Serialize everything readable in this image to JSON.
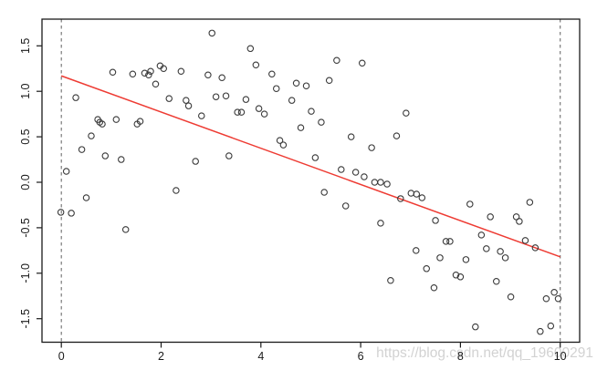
{
  "chart_data": {
    "type": "scatter",
    "title": "",
    "xlabel": "",
    "ylabel": "",
    "xlim": [
      -0.39,
      10.4
    ],
    "ylim": [
      -1.77,
      1.79
    ],
    "grid": false,
    "x_tick_labels": [
      "0",
      "2",
      "4",
      "6",
      "8",
      "10"
    ],
    "x_tick_values": [
      0,
      2,
      4,
      6,
      8,
      10
    ],
    "y_tick_labels": [
      "-1.5",
      "-1.0",
      "-0.5",
      "0.0",
      "0.5",
      "1.0",
      "1.5"
    ],
    "y_tick_values": [
      -1.5,
      -1.0,
      -0.5,
      0.0,
      0.5,
      1.0,
      1.5
    ],
    "vlines": {
      "x": [
        0,
        10
      ],
      "style": "dashed",
      "color": "#6e6e6e"
    },
    "regression_line": {
      "x1": 0,
      "y1": 1.17,
      "x2": 10,
      "y2": -0.82,
      "color": "#ee3b33"
    },
    "point_style": {
      "shape": "open-circle",
      "color": "#3a3a3a",
      "radius": 3.2
    },
    "points": [
      [
        1.03,
        1.21
      ],
      [
        1.43,
        1.19
      ],
      [
        1.67,
        1.2
      ],
      [
        1.75,
        1.18
      ],
      [
        1.79,
        1.22
      ],
      [
        1.98,
        1.28
      ],
      [
        2.05,
        1.25
      ],
      [
        1.89,
        1.08
      ],
      [
        2.4,
        1.22
      ],
      [
        0.29,
        0.93
      ],
      [
        2.16,
        0.92
      ],
      [
        0.73,
        0.69
      ],
      [
        0.77,
        0.66
      ],
      [
        0.82,
        0.64
      ],
      [
        1.1,
        0.69
      ],
      [
        1.52,
        0.64
      ],
      [
        1.58,
        0.67
      ],
      [
        0.6,
        0.51
      ],
      [
        0.41,
        0.36
      ],
      [
        0.88,
        0.29
      ],
      [
        1.2,
        0.25
      ],
      [
        3.02,
        1.64
      ],
      [
        3.79,
        1.47
      ],
      [
        3.9,
        1.29
      ],
      [
        2.94,
        1.18
      ],
      [
        3.22,
        1.15
      ],
      [
        4.22,
        1.19
      ],
      [
        4.31,
        1.03
      ],
      [
        4.71,
        1.09
      ],
      [
        4.91,
        1.06
      ],
      [
        5.37,
        1.12
      ],
      [
        3.1,
        0.94
      ],
      [
        3.3,
        0.95
      ],
      [
        2.5,
        0.9
      ],
      [
        2.55,
        0.84
      ],
      [
        3.7,
        0.91
      ],
      [
        4.62,
        0.9
      ],
      [
        3.53,
        0.77
      ],
      [
        3.61,
        0.77
      ],
      [
        3.96,
        0.81
      ],
      [
        4.07,
        0.75
      ],
      [
        2.81,
        0.73
      ],
      [
        5.01,
        0.78
      ],
      [
        5.21,
        0.66
      ],
      [
        4.8,
        0.6
      ],
      [
        4.38,
        0.46
      ],
      [
        4.45,
        0.41
      ],
      [
        3.36,
        0.29
      ],
      [
        2.69,
        0.23
      ],
      [
        5.09,
        0.27
      ],
      [
        5.52,
        1.34
      ],
      [
        6.03,
        1.31
      ],
      [
        6.91,
        0.76
      ],
      [
        5.81,
        0.5
      ],
      [
        6.72,
        0.51
      ],
      [
        6.22,
        0.38
      ],
      [
        5.61,
        0.14
      ],
      [
        5.9,
        0.11
      ],
      [
        0.1,
        0.12
      ],
      [
        0.5,
        -0.17
      ],
      [
        -0.01,
        -0.33
      ],
      [
        0.2,
        -0.34
      ],
      [
        1.29,
        -0.52
      ],
      [
        2.3,
        -0.09
      ],
      [
        6.07,
        0.06
      ],
      [
        6.28,
        0.0
      ],
      [
        6.4,
        0.0
      ],
      [
        6.53,
        -0.02
      ],
      [
        5.27,
        -0.11
      ],
      [
        5.7,
        -0.26
      ],
      [
        6.8,
        -0.18
      ],
      [
        7.01,
        -0.12
      ],
      [
        7.12,
        -0.13
      ],
      [
        7.23,
        -0.17
      ],
      [
        8.19,
        -0.24
      ],
      [
        6.4,
        -0.45
      ],
      [
        7.5,
        -0.42
      ],
      [
        7.71,
        -0.65
      ],
      [
        7.79,
        -0.65
      ],
      [
        7.11,
        -0.75
      ],
      [
        7.59,
        -0.83
      ],
      [
        8.11,
        -0.85
      ],
      [
        7.32,
        -0.95
      ],
      [
        7.91,
        -1.02
      ],
      [
        8.0,
        -1.04
      ],
      [
        6.6,
        -1.08
      ],
      [
        7.47,
        -1.16
      ],
      [
        9.39,
        -0.22
      ],
      [
        8.6,
        -0.38
      ],
      [
        9.12,
        -0.38
      ],
      [
        9.18,
        -0.43
      ],
      [
        8.42,
        -0.58
      ],
      [
        9.3,
        -0.64
      ],
      [
        9.5,
        -0.72
      ],
      [
        8.52,
        -0.73
      ],
      [
        8.8,
        -0.76
      ],
      [
        8.9,
        -0.83
      ],
      [
        8.72,
        -1.09
      ],
      [
        9.01,
        -1.26
      ],
      [
        9.72,
        -1.28
      ],
      [
        9.88,
        -1.21
      ],
      [
        9.96,
        -1.28
      ],
      [
        8.3,
        -1.59
      ],
      [
        9.6,
        -1.64
      ],
      [
        9.81,
        -1.58
      ]
    ],
    "watermark": "https://blog.csdn.net/qq_19600291",
    "watermark_color": "#d2d2d2",
    "axis_color": "#1a1a1a",
    "background_color": "#ffffff"
  }
}
